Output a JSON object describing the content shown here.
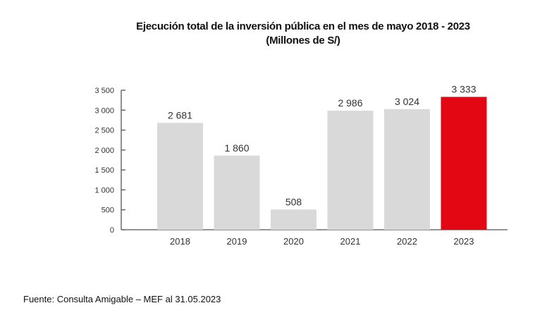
{
  "chart_data": {
    "type": "bar",
    "title": "Ejecución total de la inversión pública en el mes de mayo 2018 - 2023",
    "subtitle": "(Millones de S/)",
    "categories": [
      "2018",
      "2019",
      "2020",
      "2021",
      "2022",
      "2023"
    ],
    "values": [
      2681,
      1860,
      508,
      2986,
      3024,
      3333
    ],
    "value_labels": [
      "2 681",
      "1 860",
      "508",
      "2 986",
      "3 024",
      "3 333"
    ],
    "ylim": [
      0,
      3500
    ],
    "yticks": [
      0,
      500,
      1000,
      1500,
      2000,
      2500,
      3000,
      3500
    ],
    "ytick_labels": [
      "0",
      "500",
      "1 000",
      "1 500",
      "2 000",
      "2 500",
      "3 000",
      "3 500"
    ],
    "xlabel": "",
    "ylabel": "",
    "grid": false,
    "colors": {
      "default": "#d9d9d9",
      "highlight": "#e30613",
      "axis": "#555555"
    },
    "highlight_index": 5
  },
  "source": "Fuente: Consulta Amigable – MEF al 31.05.2023"
}
